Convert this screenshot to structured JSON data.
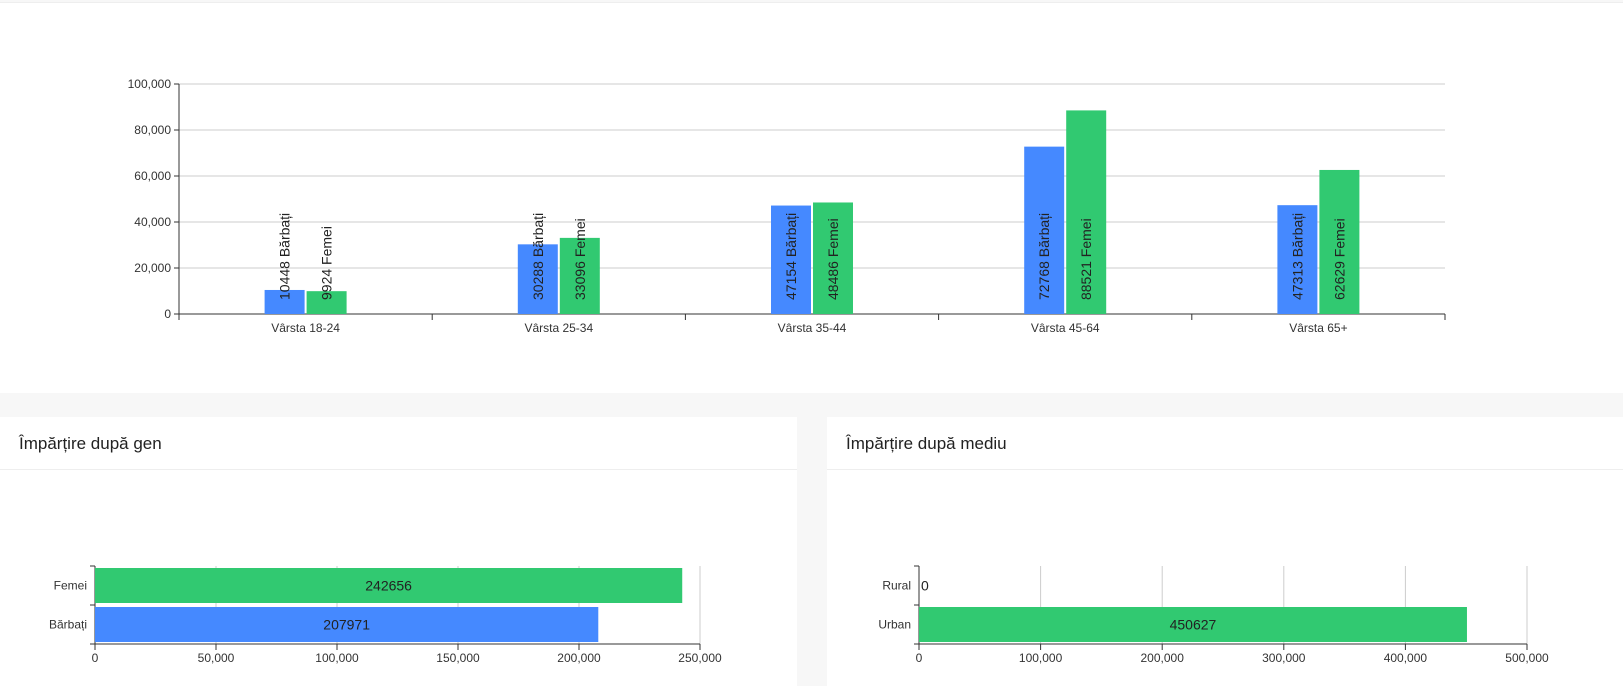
{
  "chart_data": [
    {
      "type": "bar",
      "categories": [
        "Vârsta 18-24",
        "Vârsta 25-34",
        "Vârsta 35-44",
        "Vârsta 45-64",
        "Vârsta 65+"
      ],
      "series": [
        {
          "name": "Bărbați",
          "color": "#4589ff",
          "values": [
            10448,
            30288,
            47154,
            72768,
            47313
          ],
          "labels": [
            "10448 Bărbați",
            "30288 Bărbați",
            "47154 Bărbați",
            "72768 Bărbați",
            "47313 Bărbați"
          ]
        },
        {
          "name": "Femei",
          "color": "#31c971",
          "values": [
            9924,
            33096,
            48486,
            88521,
            62629
          ],
          "labels": [
            "9924 Femei",
            "33096 Femei",
            "48486 Femei",
            "88521 Femei",
            "62629 Femei"
          ]
        }
      ],
      "ylim": [
        0,
        100000
      ],
      "yticks": [
        "0",
        "20,000",
        "40,000",
        "60,000",
        "80,000",
        "100,000"
      ],
      "grid": true
    },
    {
      "type": "bar",
      "orientation": "horizontal",
      "title": "Împărțire după gen",
      "categories": [
        "Femei",
        "Bărbați"
      ],
      "values": [
        242656,
        207971
      ],
      "value_labels": [
        "242656",
        "207971"
      ],
      "colors": [
        "#31c971",
        "#4589ff"
      ],
      "xlim": [
        0,
        250000
      ],
      "xticks": [
        "0",
        "50,000",
        "100,000",
        "150,000",
        "200,000",
        "250,000"
      ],
      "grid": true
    },
    {
      "type": "bar",
      "orientation": "horizontal",
      "title": "Împărțire după mediu",
      "categories": [
        "Rural",
        "Urban"
      ],
      "values": [
        0,
        450627
      ],
      "value_labels": [
        "0",
        "450627"
      ],
      "colors": [
        "#31c971",
        "#31c971"
      ],
      "xlim": [
        0,
        500000
      ],
      "xticks": [
        "0",
        "100,000",
        "200,000",
        "300,000",
        "400,000",
        "500,000"
      ],
      "grid": true
    }
  ]
}
